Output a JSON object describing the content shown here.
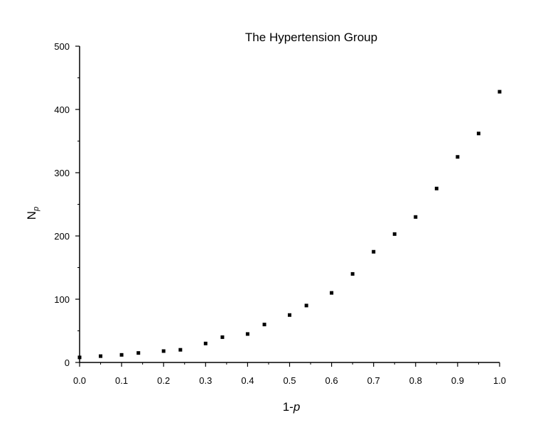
{
  "chart_data": {
    "type": "scatter",
    "title": "The Hypertension Group",
    "xlabel": {
      "main": "1-",
      "italic": "p"
    },
    "ylabel": {
      "main": "N",
      "subscript": "p"
    },
    "xlim": [
      0,
      1
    ],
    "ylim": [
      0,
      500
    ],
    "x_ticks": [
      "0.0",
      "0.1",
      "0.2",
      "0.3",
      "0.4",
      "0.5",
      "0.6",
      "0.7",
      "0.8",
      "0.9",
      "1.0"
    ],
    "y_ticks": [
      "0",
      "100",
      "200",
      "300",
      "400",
      "500"
    ],
    "grid": false,
    "legend": "none",
    "marker_color": "#000000",
    "x": [
      0.0,
      0.05,
      0.1,
      0.14,
      0.2,
      0.24,
      0.3,
      0.34,
      0.4,
      0.44,
      0.5,
      0.54,
      0.6,
      0.65,
      0.7,
      0.75,
      0.8,
      0.85,
      0.9,
      0.95,
      1.0
    ],
    "y": [
      8,
      10,
      12,
      15,
      18,
      20,
      30,
      40,
      45,
      60,
      75,
      90,
      110,
      140,
      175,
      203,
      230,
      275,
      325,
      362,
      428
    ]
  }
}
